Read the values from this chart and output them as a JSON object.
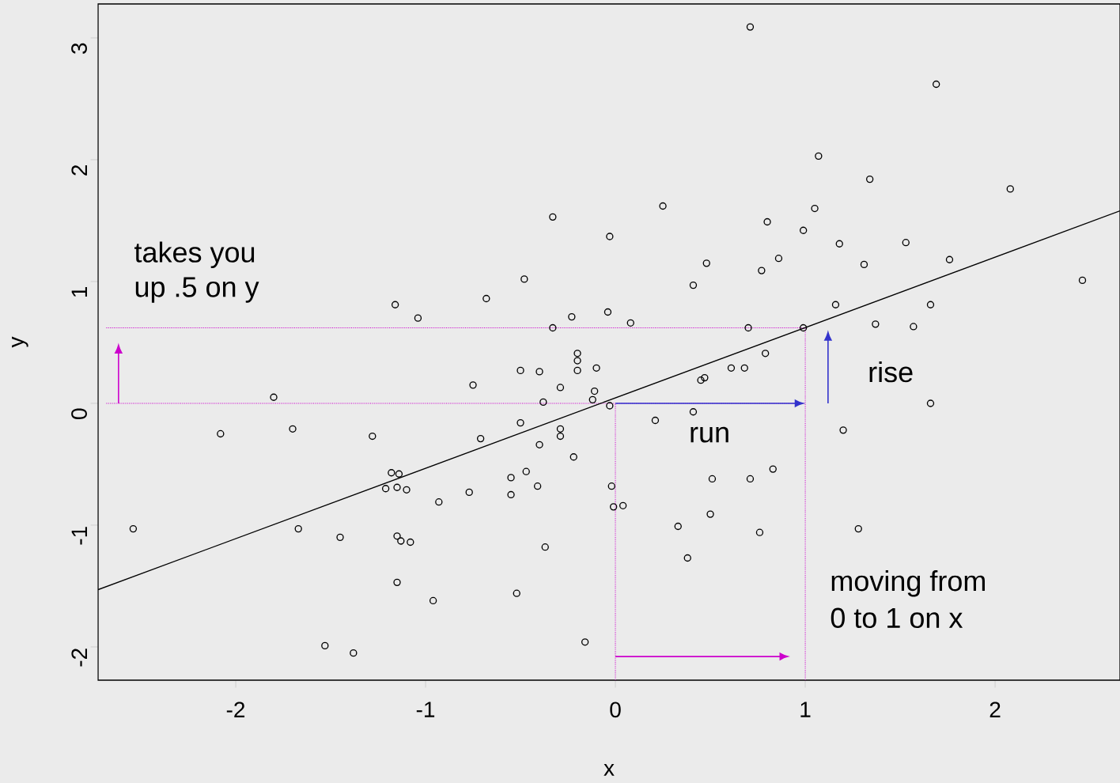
{
  "chart_data": {
    "type": "scatter",
    "xlabel": "x",
    "ylabel": "y",
    "xlim": [
      -2.725,
      2.658
    ],
    "ylim": [
      -2.273,
      3.279
    ],
    "xticks": [
      -2,
      -1,
      0,
      1,
      2
    ],
    "yticks": [
      -2,
      -1,
      0,
      1,
      2,
      3
    ],
    "series": [
      {
        "marker": "circle",
        "color": "#000000",
        "x": [
          0.71,
          1.69,
          1.07,
          1.34,
          2.08,
          0.25,
          -0.33,
          1.05,
          0.8,
          -0.03,
          0.99,
          1.18,
          1.53,
          0.48,
          1.31,
          1.76,
          0.86,
          0.77,
          -0.48,
          0.41,
          2.46,
          -0.68,
          -1.16,
          1.16,
          1.66,
          -1.04,
          -0.23,
          -0.04,
          0.08,
          -0.33,
          0.7,
          0.99,
          1.37,
          1.57,
          0.79,
          -0.2,
          -0.2,
          -0.5,
          -0.4,
          -0.2,
          -0.1,
          0.61,
          0.68,
          0.45,
          0.47,
          -0.75,
          -0.29,
          -0.11,
          -0.12,
          -1.8,
          -0.38,
          -0.03,
          1.66,
          0.41,
          -2.08,
          -1.7,
          -1.28,
          -0.71,
          -0.5,
          -0.29,
          -0.29,
          0.21,
          1.2,
          -0.4,
          -0.22,
          -1.18,
          -1.14,
          -0.47,
          -0.55,
          -1.21,
          -1.15,
          -1.1,
          0.51,
          0.71,
          0.83,
          -0.77,
          -0.55,
          -0.41,
          -0.02,
          -0.93,
          -0.01,
          0.04,
          -2.54,
          -1.67,
          0.33,
          0.5,
          1.28,
          0.76,
          -1.45,
          -1.15,
          -1.13,
          -1.08,
          -0.37,
          0.38,
          -1.15,
          -0.52,
          -0.96,
          -0.16,
          -1.53,
          -1.38
        ],
        "values": [
          3.09,
          2.62,
          2.03,
          1.84,
          1.76,
          1.62,
          1.53,
          1.6,
          1.49,
          1.37,
          1.42,
          1.31,
          1.32,
          1.15,
          1.14,
          1.18,
          1.19,
          1.09,
          1.02,
          0.97,
          1.01,
          0.86,
          0.81,
          0.81,
          0.81,
          0.7,
          0.71,
          0.75,
          0.66,
          0.62,
          0.62,
          0.62,
          0.65,
          0.63,
          0.41,
          0.41,
          0.35,
          0.27,
          0.26,
          0.27,
          0.29,
          0.29,
          0.29,
          0.19,
          0.21,
          0.15,
          0.13,
          0.1,
          0.03,
          0.05,
          0.01,
          -0.02,
          0.0,
          -0.07,
          -0.25,
          -0.21,
          -0.27,
          -0.29,
          -0.16,
          -0.21,
          -0.27,
          -0.14,
          -0.22,
          -0.34,
          -0.44,
          -0.57,
          -0.58,
          -0.56,
          -0.61,
          -0.7,
          -0.69,
          -0.71,
          -0.62,
          -0.62,
          -0.54,
          -0.73,
          -0.75,
          -0.68,
          -0.68,
          -0.81,
          -0.85,
          -0.84,
          -1.03,
          -1.03,
          -1.01,
          -0.91,
          -1.03,
          -1.06,
          -1.1,
          -1.09,
          -1.13,
          -1.14,
          -1.18,
          -1.27,
          -1.47,
          -1.56,
          -1.62,
          -1.96,
          -1.99,
          -2.05
        ]
      },
      {
        "type": "line",
        "marker": "none",
        "color": "#000000",
        "x": [
          -2.725,
          2.658
        ],
        "values": [
          -1.53,
          1.58
        ]
      }
    ],
    "ref_lines": [
      {
        "axis": "x",
        "value": 0,
        "color": "#cc00cc",
        "line_style": "dotted"
      },
      {
        "axis": "x",
        "value": 1,
        "color": "#cc00cc",
        "line_style": "dotted"
      },
      {
        "axis": "y",
        "value": 0,
        "color": "#cc00cc",
        "line_style": "dotted"
      },
      {
        "axis": "y",
        "value": 0.62,
        "color": "#cc00cc",
        "line_style": "dotted"
      }
    ],
    "annotations": [
      "takes you",
      "up .5 on y",
      "run",
      "rise",
      "moving from",
      "0 to 1 on x"
    ]
  }
}
